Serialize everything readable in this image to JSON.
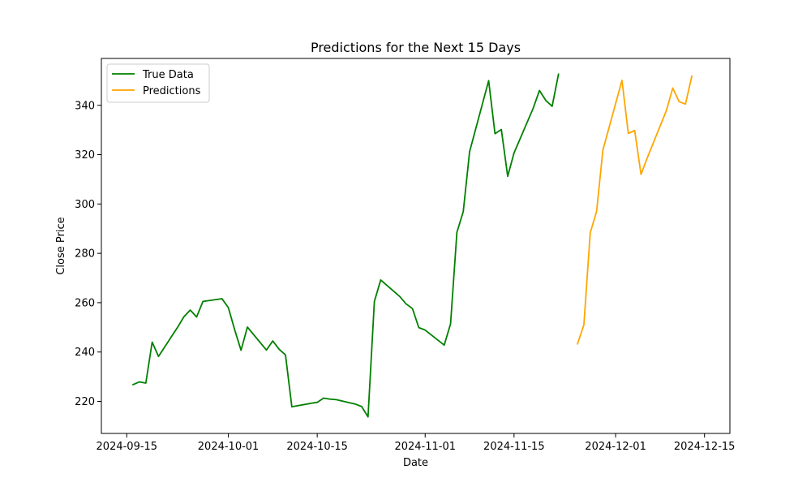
{
  "chart_data": {
    "type": "line",
    "title": "Predictions for the Next 15 Days",
    "xlabel": "Date",
    "ylabel": "Close Price",
    "xlim": [
      "2024-09-11",
      "2024-12-19"
    ],
    "ylim": [
      207,
      359
    ],
    "x_ticks": [
      "2024-09-15",
      "2024-10-01",
      "2024-10-15",
      "2024-11-01",
      "2024-11-15",
      "2024-12-01",
      "2024-12-15"
    ],
    "y_ticks": [
      220,
      240,
      260,
      280,
      300,
      320,
      340
    ],
    "grid": false,
    "legend_placement": "upper-left",
    "series": [
      {
        "name": "True Data",
        "color": "#008000",
        "points": [
          [
            "2024-09-16",
            226.8
          ],
          [
            "2024-09-17",
            227.9
          ],
          [
            "2024-09-18",
            227.4
          ],
          [
            "2024-09-19",
            244.0
          ],
          [
            "2024-09-20",
            238.2
          ],
          [
            "2024-09-23",
            250.0
          ],
          [
            "2024-09-24",
            254.3
          ],
          [
            "2024-09-25",
            257.0
          ],
          [
            "2024-09-26",
            254.2
          ],
          [
            "2024-09-27",
            260.5
          ],
          [
            "2024-09-30",
            261.6
          ],
          [
            "2024-10-01",
            258.0
          ],
          [
            "2024-10-02",
            249.0
          ],
          [
            "2024-10-03",
            240.7
          ],
          [
            "2024-10-04",
            250.1
          ],
          [
            "2024-10-07",
            240.8
          ],
          [
            "2024-10-08",
            244.5
          ],
          [
            "2024-10-09",
            241.1
          ],
          [
            "2024-10-10",
            238.8
          ],
          [
            "2024-10-11",
            217.8
          ],
          [
            "2024-10-14",
            219.2
          ],
          [
            "2024-10-15",
            219.6
          ],
          [
            "2024-10-16",
            221.3
          ],
          [
            "2024-10-17",
            220.9
          ],
          [
            "2024-10-18",
            220.7
          ],
          [
            "2024-10-21",
            218.9
          ],
          [
            "2024-10-22",
            217.9
          ],
          [
            "2024-10-23",
            213.7
          ],
          [
            "2024-10-24",
            260.5
          ],
          [
            "2024-10-25",
            269.2
          ],
          [
            "2024-10-28",
            262.5
          ],
          [
            "2024-10-29",
            259.5
          ],
          [
            "2024-10-30",
            257.6
          ],
          [
            "2024-10-31",
            249.9
          ],
          [
            "2024-11-01",
            248.9
          ],
          [
            "2024-11-04",
            242.8
          ],
          [
            "2024-11-05",
            251.4
          ],
          [
            "2024-11-06",
            288.5
          ],
          [
            "2024-11-07",
            296.9
          ],
          [
            "2024-11-08",
            321.2
          ],
          [
            "2024-11-11",
            350.0
          ],
          [
            "2024-11-12",
            328.5
          ],
          [
            "2024-11-13",
            330.2
          ],
          [
            "2024-11-14",
            311.2
          ],
          [
            "2024-11-15",
            320.7
          ],
          [
            "2024-11-18",
            338.7
          ],
          [
            "2024-11-19",
            346.0
          ],
          [
            "2024-11-20",
            342.0
          ],
          [
            "2024-11-21",
            339.6
          ],
          [
            "2024-11-22",
            352.6
          ]
        ]
      },
      {
        "name": "Predictions",
        "color": "#FFA500",
        "points": [
          [
            "2024-11-25",
            243.3
          ],
          [
            "2024-11-26",
            251.0
          ],
          [
            "2024-11-27",
            288.3
          ],
          [
            "2024-11-28",
            297.0
          ],
          [
            "2024-11-29",
            321.9
          ],
          [
            "2024-12-02",
            350.1
          ],
          [
            "2024-12-03",
            328.6
          ],
          [
            "2024-12-04",
            329.8
          ],
          [
            "2024-12-05",
            312.0
          ],
          [
            "2024-12-06",
            318.8
          ],
          [
            "2024-12-09",
            337.9
          ],
          [
            "2024-12-10",
            347.0
          ],
          [
            "2024-12-11",
            341.5
          ],
          [
            "2024-12-12",
            340.5
          ],
          [
            "2024-12-13",
            351.8
          ]
        ]
      }
    ]
  }
}
